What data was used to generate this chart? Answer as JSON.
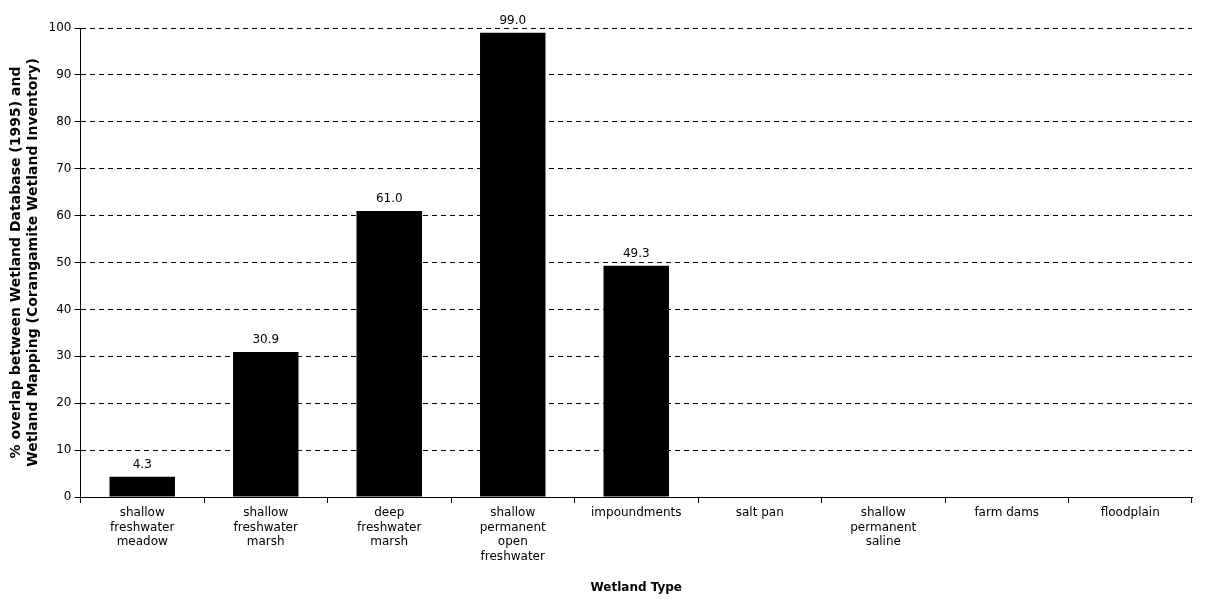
{
  "chart_data": {
    "type": "bar",
    "xlabel": "Wetland Type",
    "ylabel": "% overlap between Wetland Database (1995) and\nWetland Mapping (Corangamite Wetland Inventory)",
    "categories": [
      "shallow freshwater meadow",
      "shallow freshwater marsh",
      "deep freshwater marsh",
      "shallow permanent open freshwater",
      "impoundments",
      "salt pan",
      "shallow permanent saline",
      "farm dams",
      "floodplain"
    ],
    "values": [
      4.3,
      30.9,
      61.0,
      99.0,
      49.3,
      null,
      null,
      null,
      null
    ],
    "value_labels": [
      "4.3",
      "30.9",
      "61.0",
      "99.0",
      "49.3",
      null,
      null,
      null,
      null
    ],
    "color": "#000000",
    "ylim": [
      0,
      100
    ],
    "yticks": [
      0,
      10,
      20,
      30,
      40,
      50,
      60,
      70,
      80,
      90,
      100
    ],
    "grid": "y",
    "legend": false
  }
}
